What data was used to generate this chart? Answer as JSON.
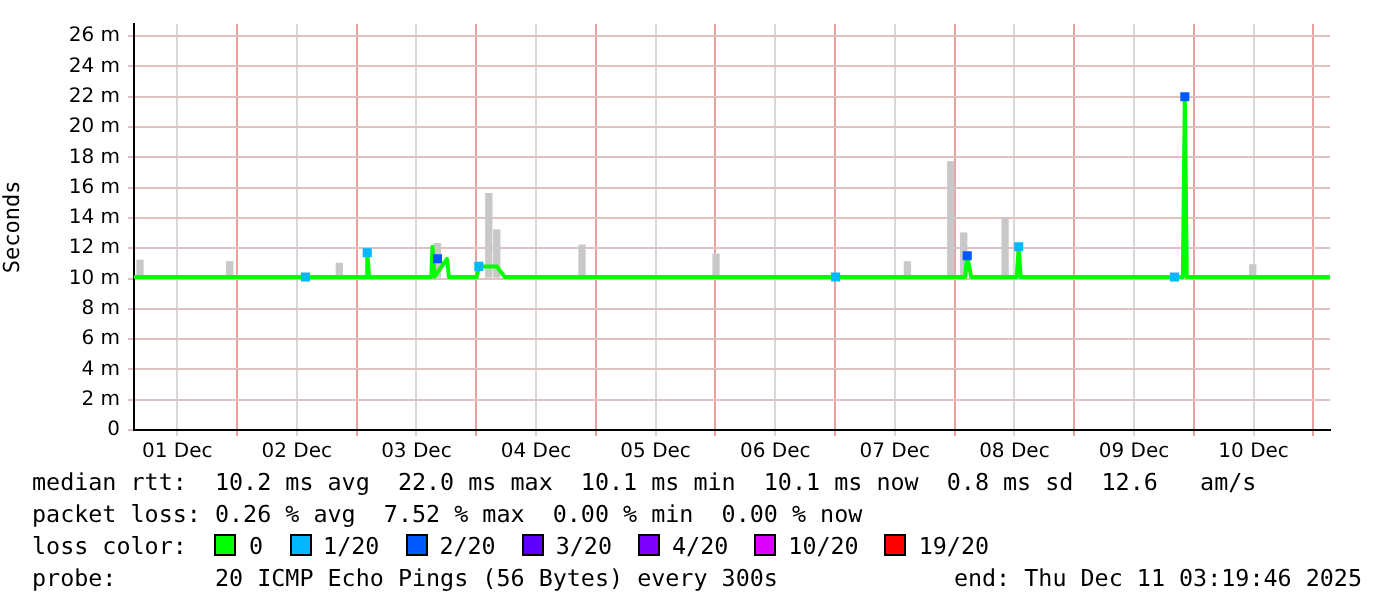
{
  "chart_data": {
    "type": "line",
    "ylabel": "Seconds",
    "legend_title": "loss color:",
    "legend": "bottom",
    "grid": true,
    "xlim": [
      "2025-12-01T03:20",
      "2025-12-11T03:20"
    ],
    "xticks": [
      {
        "value": "2025-12-01T12:00",
        "label": "01 Dec"
      },
      {
        "value": "2025-12-02T00:00",
        "label": null
      },
      {
        "value": "2025-12-02T12:00",
        "label": "02 Dec"
      },
      {
        "value": "2025-12-03T00:00",
        "label": null
      },
      {
        "value": "2025-12-03T12:00",
        "label": "03 Dec"
      },
      {
        "value": "2025-12-04T00:00",
        "label": null
      },
      {
        "value": "2025-12-04T12:00",
        "label": "04 Dec"
      },
      {
        "value": "2025-12-05T00:00",
        "label": null
      },
      {
        "value": "2025-12-05T12:00",
        "label": "05 Dec"
      },
      {
        "value": "2025-12-06T00:00",
        "label": null
      },
      {
        "value": "2025-12-06T12:00",
        "label": "06 Dec"
      },
      {
        "value": "2025-12-07T00:00",
        "label": null
      },
      {
        "value": "2025-12-07T12:00",
        "label": "07 Dec"
      },
      {
        "value": "2025-12-08T00:00",
        "label": null
      },
      {
        "value": "2025-12-08T12:00",
        "label": "08 Dec"
      },
      {
        "value": "2025-12-09T00:00",
        "label": null
      },
      {
        "value": "2025-12-09T12:00",
        "label": "09 Dec"
      },
      {
        "value": "2025-12-10T00:00",
        "label": null
      },
      {
        "value": "2025-12-10T12:00",
        "label": "10 Dec"
      },
      {
        "value": "2025-12-11T00:00",
        "label": null
      }
    ],
    "ylim": [
      0,
      26.8
    ],
    "yticks": [
      0,
      {
        "value": 2,
        "label": "2 m"
      },
      {
        "value": 4,
        "label": "4 m"
      },
      {
        "value": 6,
        "label": "6 m"
      },
      {
        "value": 8,
        "label": "8 m"
      },
      {
        "value": 10,
        "label": "10 m"
      },
      {
        "value": 12,
        "label": "12 m"
      },
      {
        "value": 14,
        "label": "14 m"
      },
      {
        "value": 16,
        "label": "16 m"
      },
      {
        "value": 18,
        "label": "18 m"
      },
      {
        "value": 20,
        "label": "20 m"
      },
      {
        "value": 22,
        "label": "22 m"
      },
      {
        "value": 24,
        "label": "24 m"
      },
      {
        "value": 26,
        "label": "26 m"
      }
    ],
    "series": [
      {
        "type": "bar",
        "color": "#c8c8c8",
        "x": [
          "2025-12-01T04:32",
          "2025-12-01T22:32",
          "2025-12-02T20:32",
          "2025-12-03T16:14",
          "2025-12-04T02:32",
          "2025-12-04T04:08",
          "2025-12-04T21:14",
          "2025-12-06T00:08",
          "2025-12-07T14:32",
          "2025-12-07T23:14",
          "2025-12-08T01:50",
          "2025-12-08T10:08",
          "2025-12-10T11:50"
        ],
        "base": [
          10.1,
          10.1,
          10.1,
          10.1,
          10.1,
          10.1,
          10.1,
          10.1,
          10.1,
          10.1,
          10.1,
          10.1,
          10.1
        ],
        "values": [
          1.1,
          1.0,
          0.9,
          2.2,
          5.5,
          3.1,
          2.1,
          1.5,
          1.0,
          7.6,
          2.9,
          3.9,
          0.8
        ]
      },
      {
        "type": "line",
        "name": "0",
        "color": "#00ff00",
        "x": [
          "2025-12-01T03:20",
          "2025-12-03T02:00",
          "2025-12-03T02:08",
          "2025-12-03T02:32",
          "2025-12-03T15:00",
          "2025-12-03T15:14",
          "2025-12-03T15:38",
          "2025-12-03T18:08",
          "2025-12-03T18:32",
          "2025-12-04T00:08",
          "2025-12-04T00:32",
          "2025-12-04T04:08",
          "2025-12-04T05:44",
          "2025-12-08T02:08",
          "2025-12-08T02:32",
          "2025-12-08T03:20",
          "2025-12-08T12:28",
          "2025-12-08T12:52",
          "2025-12-08T13:16",
          "2025-12-09T21:48",
          "2025-12-09T22:12",
          "2025-12-09T22:36",
          "2025-12-11T03:20"
        ],
        "values": [
          10.1,
          10.1,
          11.7,
          10.1,
          10.1,
          12.1,
          10.1,
          11.3,
          10.1,
          10.1,
          10.8,
          10.8,
          10.1,
          10.1,
          11.5,
          10.1,
          10.1,
          12.1,
          10.1,
          10.1,
          22.0,
          10.1,
          10.1
        ]
      },
      {
        "type": "scatter",
        "name": "1/20",
        "color": "#00b8ff",
        "marker": "square",
        "x": [
          "2025-12-02T13:44",
          "2025-12-03T02:08",
          "2025-12-04T00:32",
          "2025-12-07T00:08",
          "2025-12-08T12:52",
          "2025-12-09T20:08"
        ],
        "values": [
          10.1,
          11.7,
          10.8,
          10.1,
          12.1,
          10.1
        ]
      },
      {
        "type": "scatter",
        "name": "2/20",
        "color": "#0059ff",
        "marker": "square",
        "x": [
          "2025-12-03T16:14",
          "2025-12-08T02:32",
          "2025-12-09T22:12"
        ],
        "values": [
          11.3,
          11.5,
          22.0
        ]
      },
      {
        "type": "scatter",
        "name": "3/20",
        "color": "#5e00ff",
        "marker": "square"
      },
      {
        "type": "scatter",
        "name": "4/20",
        "color": "#7e00ff",
        "marker": "square"
      },
      {
        "type": "scatter",
        "name": "10/20",
        "color": "#dd00ff",
        "marker": "square"
      },
      {
        "type": "scatter",
        "name": "19/20",
        "color": "#ff0000",
        "marker": "square"
      }
    ],
    "annotations": [
      "median rtt:  10.2 ms avg  22.0 ms max  10.1 ms min  10.1 ms now  0.8 ms sd  12.6   am/s",
      "packet loss: 0.26 % avg  7.52 % max  0.00 % min  0.00 % now",
      "probe:       20 ICMP Echo Pings (56 Bytes) every 300s",
      "end: Thu Dec 11 03:19:46 2025"
    ]
  }
}
